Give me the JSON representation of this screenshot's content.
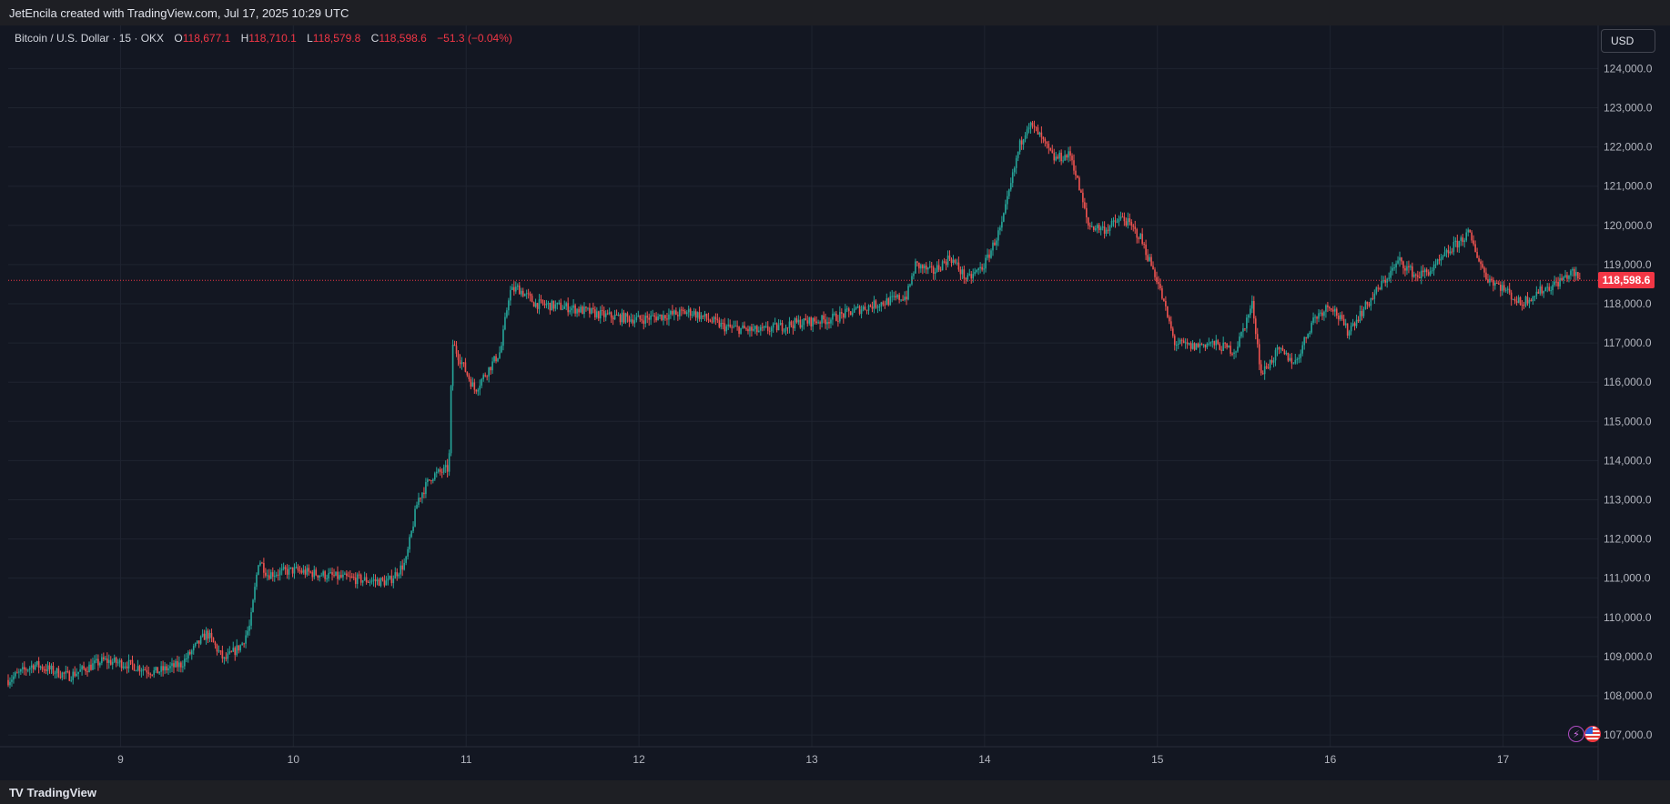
{
  "header": {
    "title": "JetEncila created with TradingView.com, Jul 17, 2025 10:29 UTC"
  },
  "legend": {
    "symbol": "Bitcoin / U.S. Dollar · 15 · OKX",
    "open_label": "O",
    "open": "118,677.1",
    "high_label": "H",
    "high": "118,710.1",
    "low_label": "L",
    "low": "118,579.8",
    "close_label": "C",
    "close": "118,598.6",
    "change": "−51.3 (−0.04%)"
  },
  "currency_button": {
    "label": "USD"
  },
  "last_price_tag": "118,598.6",
  "footer": {
    "brand": "TradingView",
    "logo_mark": "TV"
  },
  "colors": {
    "background": "#131722",
    "grid": "#1f2430",
    "up": "#26a69a",
    "down": "#ef5350",
    "price_line": "#f23645",
    "axis_text": "#b2b5be"
  },
  "chart_data": {
    "type": "candlestick",
    "title": "Bitcoin / U.S. Dollar · 15 · OKX",
    "last_price": 118598.6,
    "ylim": [
      106700,
      125100
    ],
    "y_ticks": [
      107000,
      108000,
      109000,
      110000,
      111000,
      112000,
      113000,
      114000,
      115000,
      116000,
      117000,
      118000,
      119000,
      120000,
      121000,
      122000,
      123000,
      124000
    ],
    "y_tick_labels": [
      "107,000.0",
      "108,000.0",
      "109,000.0",
      "110,000.0",
      "111,000.0",
      "112,000.0",
      "113,000.0",
      "114,000.0",
      "115,000.0",
      "116,000.0",
      "117,000.0",
      "118,000.0",
      "119,000.0",
      "120,000.0",
      "121,000.0",
      "122,000.0",
      "123,000.0",
      "124,000.0"
    ],
    "xlim": [
      8.35,
      17.55
    ],
    "x_ticks": [
      9,
      10,
      11,
      12,
      13,
      14,
      15,
      16,
      17
    ],
    "x_tick_labels": [
      "9",
      "10",
      "11",
      "12",
      "13",
      "14",
      "15",
      "16",
      "17"
    ],
    "grid": true,
    "series": [
      {
        "x": [
          8.35,
          8.5,
          8.7,
          8.9,
          9.05,
          9.2,
          9.35,
          9.5,
          9.6,
          9.7,
          9.75,
          9.8,
          9.85,
          10.0,
          10.3,
          10.55,
          10.65,
          10.72,
          10.8,
          10.9,
          10.92,
          11.05,
          11.2,
          11.25,
          11.3,
          11.4,
          11.6,
          11.8,
          12.0,
          12.3,
          12.5,
          12.7,
          12.9,
          13.1,
          13.3,
          13.55,
          13.6,
          13.7,
          13.8,
          13.9,
          14.0,
          14.1,
          14.2,
          14.25,
          14.3,
          14.4,
          14.5,
          14.6,
          14.7,
          14.8,
          14.9,
          15.0,
          15.1,
          15.2,
          15.3,
          15.45,
          15.55,
          15.6,
          15.7,
          15.8,
          15.9,
          16.0,
          16.1,
          16.2,
          16.3,
          16.4,
          16.5,
          16.6,
          16.7,
          16.8,
          16.9,
          17.0,
          17.1,
          17.2,
          17.3,
          17.4,
          17.45
        ],
        "close": [
          108400,
          108800,
          108500,
          108900,
          108800,
          108600,
          108800,
          109600,
          108900,
          109300,
          109800,
          111500,
          111100,
          111200,
          111000,
          110900,
          111400,
          113000,
          113600,
          113800,
          117000,
          115800,
          116800,
          118300,
          118400,
          118000,
          117900,
          117700,
          117600,
          117800,
          117400,
          117300,
          117500,
          117600,
          117900,
          118200,
          119000,
          118800,
          119200,
          118600,
          119000,
          120000,
          122000,
          122600,
          122400,
          121700,
          121800,
          120000,
          119900,
          120200,
          119700,
          118600,
          117000,
          116900,
          117000,
          116800,
          118000,
          116200,
          116800,
          116500,
          117600,
          118000,
          117300,
          117900,
          118500,
          119100,
          118700,
          118900,
          119400,
          119800,
          118700,
          118400,
          118000,
          118300,
          118500,
          118800,
          118600
        ]
      }
    ]
  }
}
